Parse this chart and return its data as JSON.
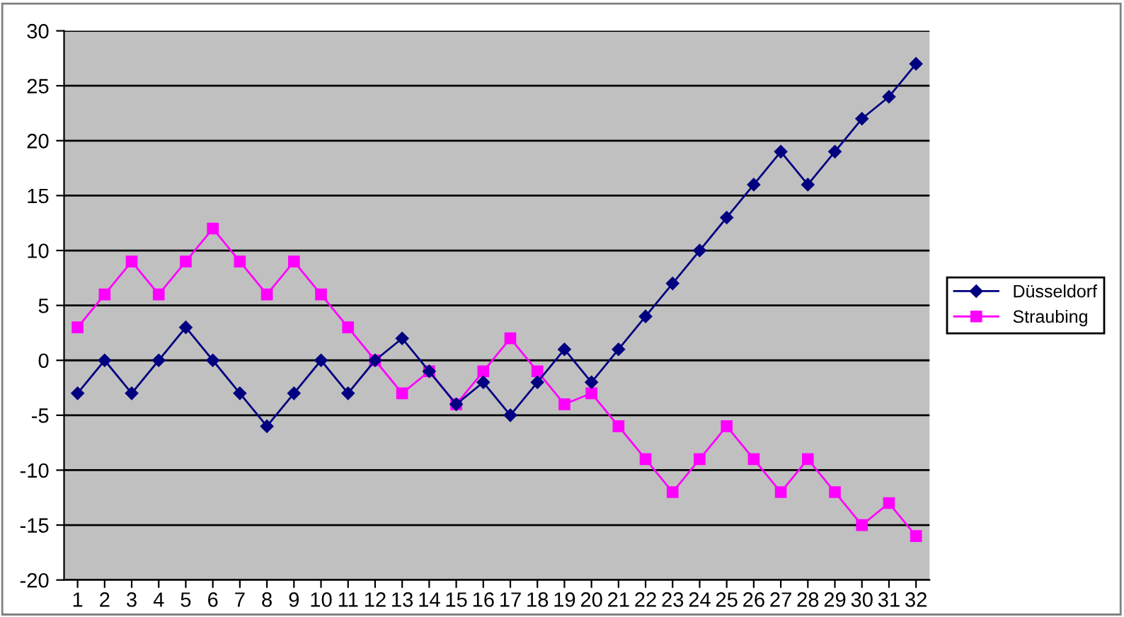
{
  "chart_data": {
    "type": "line",
    "categories": [
      "1",
      "2",
      "3",
      "4",
      "5",
      "6",
      "7",
      "8",
      "9",
      "10",
      "11",
      "12",
      "13",
      "14",
      "15",
      "16",
      "17",
      "18",
      "19",
      "20",
      "21",
      "22",
      "23",
      "24",
      "25",
      "26",
      "27",
      "28",
      "29",
      "30",
      "31",
      "32"
    ],
    "series": [
      {
        "name": "Düsseldorf",
        "color": "#000080",
        "marker": "diamond",
        "values": [
          -3,
          0,
          -3,
          0,
          3,
          0,
          -3,
          -6,
          -3,
          0,
          -3,
          0,
          2,
          -1,
          -4,
          -2,
          -5,
          -2,
          1,
          -2,
          1,
          4,
          7,
          10,
          13,
          16,
          19,
          16,
          19,
          22,
          24,
          27
        ]
      },
      {
        "name": "Straubing",
        "color": "#ff00ff",
        "marker": "square",
        "values": [
          3,
          6,
          9,
          6,
          9,
          12,
          9,
          6,
          9,
          6,
          3,
          0,
          -3,
          -1,
          -4,
          -1,
          2,
          -1,
          -4,
          -3,
          -6,
          -9,
          -12,
          -9,
          -6,
          -9,
          -12,
          -9,
          -12,
          -15,
          -13,
          -16
        ]
      }
    ],
    "ylim": [
      -20,
      30
    ],
    "yticks": [
      -20,
      -15,
      -10,
      -5,
      0,
      5,
      10,
      15,
      20,
      25,
      30
    ],
    "grid": "y",
    "legend": "right",
    "line_style": "solid"
  }
}
